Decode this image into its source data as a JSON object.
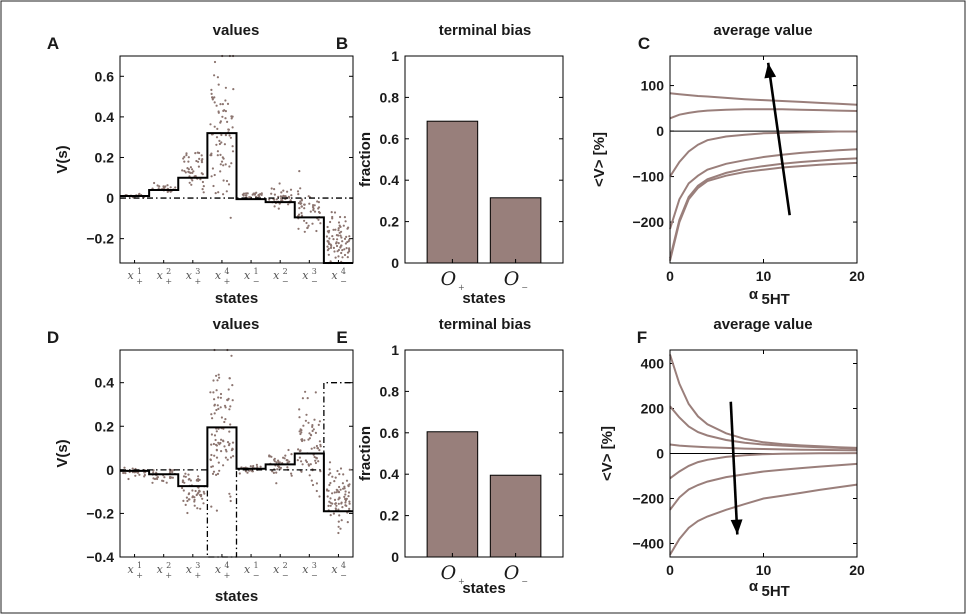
{
  "colors": {
    "bar": "#987f7b",
    "dots": "#8c7570",
    "curve": "#9a7f7b",
    "line": "#000000"
  },
  "chart_data": [
    {
      "panel": "A",
      "type": "step-scatter",
      "title": "values",
      "xlabel": "states",
      "ylabel": "V(s)",
      "ylim": [
        -0.32,
        0.7
      ],
      "yticks": [
        -0.2,
        0,
        0.2,
        0.4,
        0.6
      ],
      "ytick_labels": [
        "−0.2",
        "0",
        "0.2",
        "0.4",
        "0.6"
      ],
      "categories": [
        {
          "base": "x",
          "sup": "1",
          "sub": "+"
        },
        {
          "base": "x",
          "sup": "2",
          "sub": "+"
        },
        {
          "base": "x",
          "sup": "3",
          "sub": "+"
        },
        {
          "base": "x",
          "sup": "4",
          "sub": "+"
        },
        {
          "base": "x",
          "sup": "1",
          "sub": "−"
        },
        {
          "base": "x",
          "sup": "2",
          "sub": "−"
        },
        {
          "base": "x",
          "sup": "3",
          "sub": "−"
        },
        {
          "base": "x",
          "sup": "4",
          "sub": "−"
        }
      ],
      "solid_values": [
        0.01,
        0.04,
        0.1,
        0.32,
        -0.005,
        -0.02,
        -0.095,
        -0.32
      ],
      "dashdot_values": [
        0,
        0,
        0,
        0,
        0,
        0,
        0,
        0
      ],
      "scatter": [
        {
          "center": 0.012,
          "spread": 0.008,
          "n": 20
        },
        {
          "center": 0.05,
          "spread": 0.015,
          "n": 25
        },
        {
          "center": 0.14,
          "spread": 0.07,
          "n": 45
        },
        {
          "center": 0.33,
          "spread": 0.22,
          "n": 85
        },
        {
          "center": 0.012,
          "spread": 0.012,
          "n": 25
        },
        {
          "center": 0.0,
          "spread": 0.03,
          "n": 45
        },
        {
          "center": -0.05,
          "spread": 0.06,
          "n": 50
        },
        {
          "center": -0.2,
          "spread": 0.08,
          "n": 85
        }
      ]
    },
    {
      "panel": "B",
      "type": "bar",
      "title": "terminal bias",
      "xlabel": "states",
      "ylabel": "fraction",
      "ylim": [
        0,
        1
      ],
      "yticks": [
        0,
        0.2,
        0.4,
        0.6,
        0.8,
        1
      ],
      "ytick_labels": [
        "0",
        "0.2",
        "0.4",
        "0.6",
        "0.8",
        "1"
      ],
      "categories": [
        {
          "base": "O",
          "sub": "+"
        },
        {
          "base": "O",
          "sub": "−"
        }
      ],
      "values": [
        0.685,
        0.315
      ]
    },
    {
      "panel": "C",
      "type": "line",
      "title": "average value",
      "xlabel": "α",
      "xlabel_sub": "5HT",
      "ylabel": "<V> [%]",
      "xlim": [
        0,
        20
      ],
      "ylim": [
        -290,
        165
      ],
      "xticks": [
        0,
        10,
        20
      ],
      "xtick_labels": [
        "0",
        "10",
        "20"
      ],
      "yticks": [
        -200,
        -100,
        0,
        100
      ],
      "ytick_labels": [
        "−200",
        "−100",
        "0",
        "100"
      ],
      "x": [
        0,
        1,
        2,
        3,
        4,
        6,
        8,
        10,
        12,
        14,
        16,
        18,
        20
      ],
      "series": [
        {
          "values": [
            83,
            81,
            79,
            77,
            76,
            73,
            70,
            68,
            66,
            64,
            62,
            60,
            58
          ]
        },
        {
          "values": [
            28,
            36,
            40,
            43,
            45,
            47,
            48,
            48,
            48,
            47,
            46,
            45,
            44
          ]
        },
        {
          "values": [
            -100,
            -68,
            -45,
            -30,
            -20,
            -12,
            -8,
            -5,
            -4,
            -3,
            -2,
            -1,
            -1
          ]
        },
        {
          "values": [
            -215,
            -150,
            -115,
            -98,
            -85,
            -72,
            -64,
            -57,
            -52,
            -48,
            -45,
            -42,
            -40
          ]
        },
        {
          "values": [
            -280,
            -195,
            -145,
            -120,
            -106,
            -92,
            -83,
            -77,
            -72,
            -68,
            -65,
            -62,
            -60
          ]
        },
        {
          "values": [
            -285,
            -200,
            -150,
            -125,
            -110,
            -98,
            -90,
            -85,
            -80,
            -77,
            -74,
            -72,
            -70
          ]
        }
      ],
      "zero_line": 0,
      "arrow": {
        "from": [
          12.8,
          -185
        ],
        "to": [
          10.5,
          150
        ]
      }
    },
    {
      "panel": "D",
      "type": "step-scatter",
      "title": "values",
      "xlabel": "states",
      "ylabel": "V(s)",
      "ylim": [
        -0.4,
        0.55
      ],
      "yticks": [
        -0.4,
        -0.2,
        0,
        0.2,
        0.4
      ],
      "ytick_labels": [
        "−0.4",
        "−0.2",
        "0",
        "0.2",
        "0.4"
      ],
      "categories": [
        {
          "base": "x",
          "sup": "1",
          "sub": "+"
        },
        {
          "base": "x",
          "sup": "2",
          "sub": "+"
        },
        {
          "base": "x",
          "sup": "3",
          "sub": "+"
        },
        {
          "base": "x",
          "sup": "4",
          "sub": "+"
        },
        {
          "base": "x",
          "sup": "1",
          "sub": "−"
        },
        {
          "base": "x",
          "sup": "2",
          "sub": "−"
        },
        {
          "base": "x",
          "sup": "3",
          "sub": "−"
        },
        {
          "base": "x",
          "sup": "4",
          "sub": "−"
        }
      ],
      "solid_values": [
        -0.005,
        -0.02,
        -0.075,
        0.195,
        0.005,
        0.025,
        0.075,
        -0.19
      ],
      "dashdot_values": [
        0,
        0,
        0,
        -0.4,
        0,
        0,
        0,
        0.4
      ],
      "scatter": [
        {
          "center": -0.01,
          "spread": 0.012,
          "n": 25
        },
        {
          "center": -0.03,
          "spread": 0.02,
          "n": 30
        },
        {
          "center": -0.1,
          "spread": 0.06,
          "n": 55
        },
        {
          "center": 0.15,
          "spread": 0.22,
          "n": 95
        },
        {
          "center": 0.005,
          "spread": 0.012,
          "n": 25
        },
        {
          "center": 0.03,
          "spread": 0.04,
          "n": 40
        },
        {
          "center": 0.1,
          "spread": 0.12,
          "n": 75
        },
        {
          "center": -0.14,
          "spread": 0.09,
          "n": 85
        }
      ]
    },
    {
      "panel": "E",
      "type": "bar",
      "title": "terminal bias",
      "xlabel": "states",
      "ylabel": "fraction",
      "ylim": [
        0,
        1
      ],
      "yticks": [
        0,
        0.2,
        0.4,
        0.6,
        0.8,
        1
      ],
      "ytick_labels": [
        "0",
        "0.2",
        "0.4",
        "0.6",
        "0.8",
        "1"
      ],
      "categories": [
        {
          "base": "O",
          "sub": "+"
        },
        {
          "base": "O",
          "sub": "−"
        }
      ],
      "values": [
        0.605,
        0.395
      ]
    },
    {
      "panel": "F",
      "type": "line",
      "title": "average value",
      "xlabel": "α",
      "xlabel_sub": "5HT",
      "ylabel": "<V> [%]",
      "xlim": [
        0,
        20
      ],
      "ylim": [
        -460,
        460
      ],
      "xticks": [
        0,
        10,
        20
      ],
      "xtick_labels": [
        "0",
        "10",
        "20"
      ],
      "yticks": [
        -400,
        -200,
        0,
        200,
        400
      ],
      "ytick_labels": [
        "−400",
        "−200",
        "0",
        "200",
        "400"
      ],
      "x": [
        0,
        1,
        2,
        3,
        4,
        6,
        8,
        10,
        12,
        14,
        16,
        18,
        20
      ],
      "series": [
        {
          "values": [
            440,
            310,
            220,
            165,
            130,
            90,
            65,
            50,
            42,
            36,
            32,
            28,
            25
          ]
        },
        {
          "values": [
            210,
            160,
            120,
            95,
            80,
            60,
            48,
            40,
            35,
            31,
            28,
            25,
            22
          ]
        },
        {
          "values": [
            40,
            35,
            32,
            30,
            28,
            25,
            22,
            20,
            18,
            17,
            16,
            15,
            14
          ]
        },
        {
          "values": [
            -110,
            -80,
            -55,
            -38,
            -28,
            -15,
            -8,
            -3,
            -1,
            0,
            1,
            1,
            2
          ]
        },
        {
          "values": [
            -250,
            -195,
            -160,
            -140,
            -125,
            -105,
            -92,
            -80,
            -72,
            -65,
            -58,
            -52,
            -46
          ]
        },
        {
          "values": [
            -450,
            -380,
            -330,
            -300,
            -280,
            -250,
            -225,
            -200,
            -188,
            -175,
            -162,
            -150,
            -138
          ]
        }
      ],
      "zero_line": 0,
      "arrow": {
        "from": [
          6.5,
          230
        ],
        "to": [
          7.2,
          -360
        ]
      }
    }
  ]
}
